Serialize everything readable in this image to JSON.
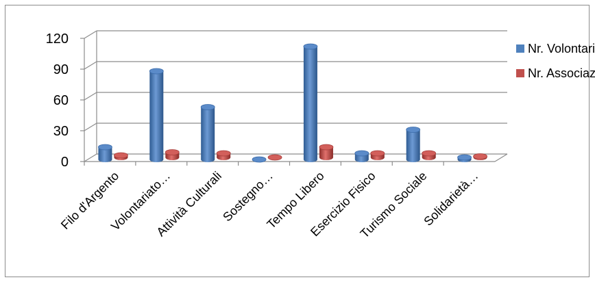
{
  "chart_data": {
    "type": "bar",
    "title": "",
    "xlabel": "",
    "ylabel": "",
    "ylim": [
      0,
      120
    ],
    "yticks": [
      0,
      30,
      60,
      90,
      120
    ],
    "grid": true,
    "legend_position": "right",
    "categories": [
      "Filo d'Argento",
      "Volontariato…",
      "Attività Culturali",
      "Sostegno…",
      "Tempo Libero",
      "Esercizio Fisico",
      "Turismo Sociale",
      "Solidarietà…"
    ],
    "series": [
      {
        "name": "Nr. Volontari",
        "values": [
          12,
          86,
          51,
          0,
          110,
          6,
          29,
          2
        ],
        "color": "#4f81bd"
      },
      {
        "name": "Nr. Associaz.",
        "values": [
          2,
          5,
          4,
          0,
          10,
          4,
          4,
          1
        ],
        "color": "#c0504d"
      }
    ]
  }
}
